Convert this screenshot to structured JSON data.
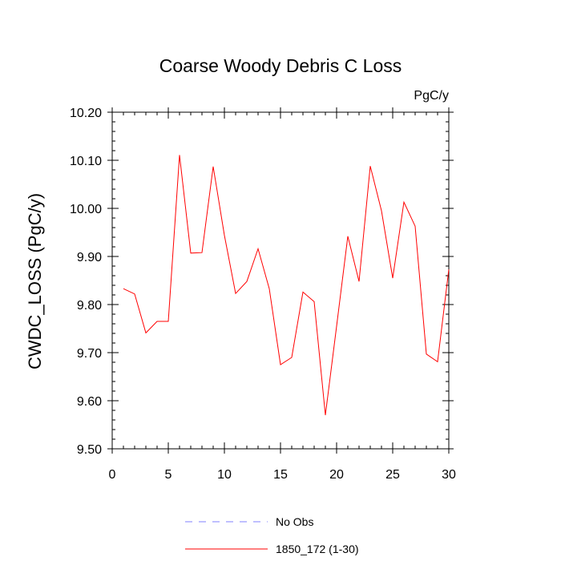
{
  "chart_data": {
    "type": "line",
    "title": "Coarse Woody Debris C Loss",
    "units": "PgC/y",
    "xlabel": "",
    "ylabel": "CWDC_LOSS  (PgC/y)",
    "xlim": [
      0,
      30
    ],
    "ylim": [
      9.5,
      10.2
    ],
    "x_ticks": [
      0,
      5,
      10,
      15,
      20,
      25,
      30
    ],
    "x_tick_labels": [
      "0",
      "5",
      "10",
      "15",
      "20",
      "25",
      "30"
    ],
    "y_ticks": [
      9.5,
      9.6,
      9.7,
      9.8,
      9.9,
      10.0,
      10.1,
      10.2
    ],
    "y_tick_labels": [
      "9.50",
      "9.60",
      "9.70",
      "9.80",
      "9.90",
      "10.00",
      "10.10",
      "10.20"
    ],
    "grid": false,
    "legend_position": "bottom-center",
    "series": [
      {
        "name": "1850_172 (1-30)",
        "color": "#ff0000",
        "style": "solid",
        "x": [
          1,
          2,
          3,
          4,
          5,
          6,
          7,
          8,
          9,
          10,
          11,
          12,
          13,
          14,
          15,
          16,
          17,
          18,
          19,
          20,
          21,
          22,
          23,
          24,
          25,
          26,
          27,
          28,
          29,
          30
        ],
        "values": [
          9.833,
          9.822,
          9.741,
          9.765,
          9.765,
          10.111,
          9.907,
          9.908,
          10.087,
          9.944,
          9.823,
          9.848,
          9.916,
          9.833,
          9.675,
          9.69,
          9.826,
          9.806,
          9.57,
          9.755,
          9.942,
          9.848,
          10.088,
          9.995,
          9.855,
          10.013,
          9.963,
          9.697,
          9.681,
          9.873
        ]
      }
    ],
    "legend": [
      {
        "label": "No Obs",
        "color": "#8080ff",
        "style": "dashed"
      },
      {
        "label": "1850_172 (1-30)",
        "color": "#ff0000",
        "style": "solid"
      }
    ]
  }
}
